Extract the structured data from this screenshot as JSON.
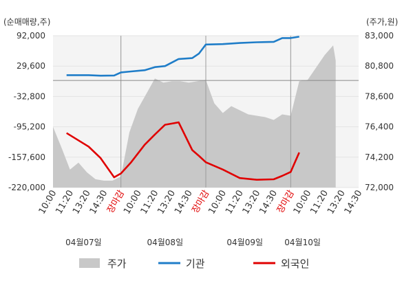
{
  "chart_data": {
    "type": "line",
    "left_unit": "(순매매량,주)",
    "right_unit": "(주가,원)",
    "left_ticks": [
      "92,000",
      "29,600",
      "-32,800",
      "-95,200",
      "-157,600",
      "-220,000"
    ],
    "right_ticks": [
      "83,000",
      "80,800",
      "78,600",
      "76,400",
      "74,200",
      "72,000"
    ],
    "y_left_range": [
      -220000,
      92000
    ],
    "y_right_range": [
      72000,
      83000
    ],
    "x_ticks": [
      "10:00",
      "11:20",
      "13:20",
      "14:30",
      "장마감",
      "10:00",
      "11:20",
      "13:20",
      "14:30",
      "장마감",
      "10:00",
      "11:20",
      "13:20",
      "14:30",
      "장마감",
      "10:00",
      "11:20",
      "13:20",
      "14:30"
    ],
    "x_tick_close_label": "장마감",
    "dates": [
      "04월07일",
      "04월08일",
      "04월09일",
      "04월10일"
    ],
    "x_range": [
      0,
      18
    ],
    "grid": true,
    "legend_position": "bottom",
    "colors": {
      "price": "#c8c8c8",
      "institution": "#1f7dc8",
      "foreign": "#e00000"
    },
    "series": [
      {
        "name": "주가",
        "axis": "right",
        "style": "area",
        "points": [
          [
            0,
            76.4
          ],
          [
            0.5,
            74.9
          ],
          [
            1,
            73.3
          ],
          [
            1.5,
            73.8
          ],
          [
            2,
            73.1
          ],
          [
            2.5,
            72.6
          ],
          [
            3,
            72.5
          ],
          [
            3.5,
            72.5
          ],
          [
            4,
            72.8
          ],
          [
            4.5,
            76.0
          ],
          [
            5,
            77.7
          ],
          [
            5.5,
            78.8
          ],
          [
            6,
            79.9
          ],
          [
            6.5,
            79.6
          ],
          [
            7,
            79.7
          ],
          [
            7.5,
            79.7
          ],
          [
            8,
            79.6
          ],
          [
            8.5,
            79.7
          ],
          [
            9,
            79.8
          ],
          [
            9.5,
            78.1
          ],
          [
            10,
            77.4
          ],
          [
            10.5,
            77.9
          ],
          [
            11,
            77.6
          ],
          [
            11.5,
            77.3
          ],
          [
            12,
            77.2
          ],
          [
            12.5,
            77.1
          ],
          [
            13,
            76.9
          ],
          [
            13.5,
            77.3
          ],
          [
            14,
            77.2
          ],
          [
            14.5,
            79.7
          ],
          [
            15,
            79.8
          ],
          [
            15.5,
            80.7
          ],
          [
            16,
            81.6
          ],
          [
            16.5,
            82.3
          ],
          [
            16.65,
            81.2
          ]
        ]
      },
      {
        "name": "기관",
        "axis": "left",
        "style": "line",
        "points": [
          [
            0.8,
            11000
          ],
          [
            2.1,
            11000
          ],
          [
            2.8,
            9800
          ],
          [
            3.6,
            10300
          ],
          [
            4,
            16600
          ],
          [
            4.6,
            18600
          ],
          [
            5.4,
            21100
          ],
          [
            6,
            27500
          ],
          [
            6.6,
            29600
          ],
          [
            7.4,
            44200
          ],
          [
            8.2,
            46000
          ],
          [
            8.6,
            55400
          ],
          [
            9,
            74000
          ],
          [
            10,
            74800
          ],
          [
            11,
            77000
          ],
          [
            12,
            78600
          ],
          [
            13,
            79500
          ],
          [
            13.5,
            87200
          ],
          [
            14,
            87200
          ],
          [
            14.5,
            90000
          ]
        ]
      },
      {
        "name": "외국인",
        "axis": "left",
        "style": "line",
        "points": [
          [
            0.8,
            -108000
          ],
          [
            2.1,
            -136000
          ],
          [
            2.8,
            -159500
          ],
          [
            3.6,
            -199000
          ],
          [
            4,
            -191000
          ],
          [
            4.6,
            -168000
          ],
          [
            5.4,
            -132000
          ],
          [
            6,
            -111000
          ],
          [
            6.6,
            -91000
          ],
          [
            7.4,
            -86000
          ],
          [
            8.2,
            -143000
          ],
          [
            8.6,
            -155000
          ],
          [
            9,
            -168000
          ],
          [
            10,
            -183000
          ],
          [
            11,
            -200500
          ],
          [
            12,
            -204000
          ],
          [
            13,
            -203000
          ],
          [
            13.5,
            -196000
          ],
          [
            14,
            -188000
          ],
          [
            14.5,
            -148000
          ]
        ]
      }
    ]
  }
}
